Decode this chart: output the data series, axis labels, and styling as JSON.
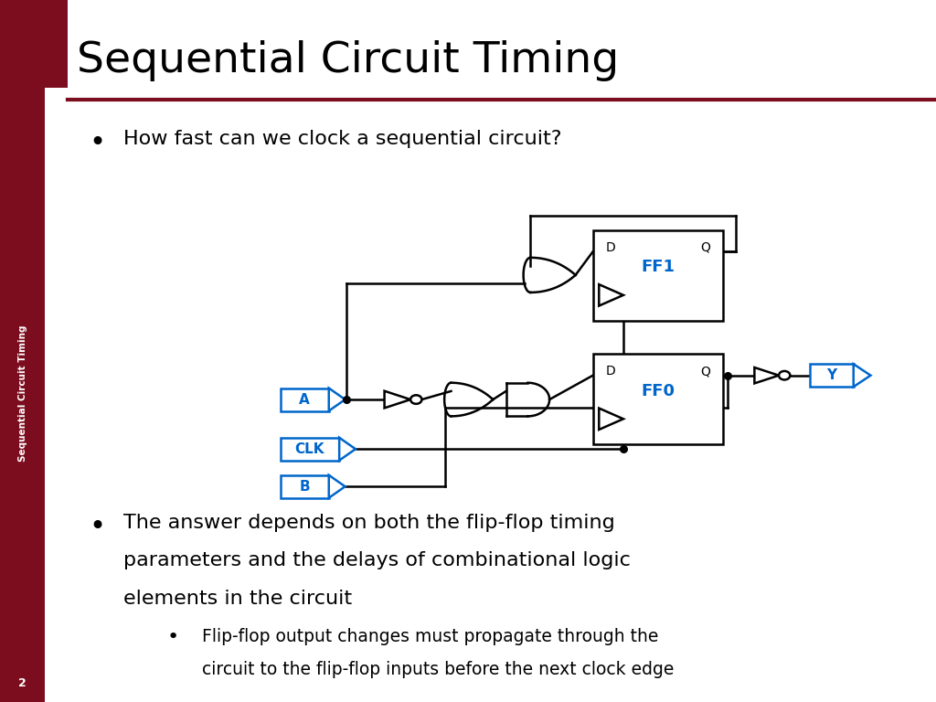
{
  "title": "Sequential Circuit Timing",
  "sidebar_text": "Sequential Circuit Timing",
  "sidebar_color": "#7B0D1E",
  "title_color": "#000000",
  "accent_color": "#7B0D1E",
  "blue_color": "#0066CC",
  "bullet1": "How fast can we clock a sequential circuit?",
  "bullet2_lines": [
    "The answer depends on both the flip-flop timing",
    "parameters and the delays of combinational logic",
    "elements in the circuit"
  ],
  "sub_bullet_lines": [
    "Flip-flop output changes must propagate through the",
    "circuit to the flip-flop inputs before the next clock edge"
  ],
  "page_num": "2",
  "bg_color": "#FFFFFF"
}
